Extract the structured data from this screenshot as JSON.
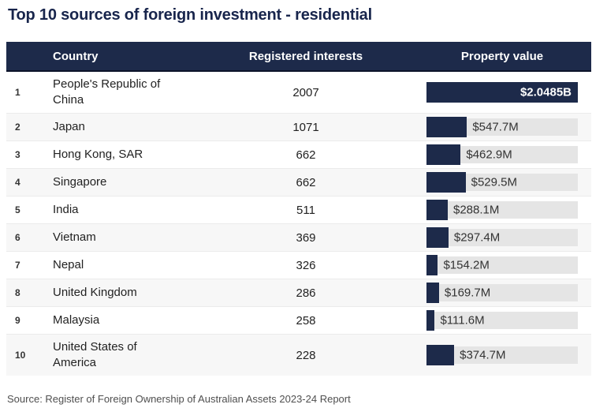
{
  "title": "Top 10 sources of foreign investment - residential",
  "source_note": "Source: Register of Foreign Ownership of Australian Assets 2023-24 Report",
  "colors": {
    "navy": "#1d2a4a",
    "title": "#18254c",
    "track": "#e5e5e5",
    "row_alt": "#f7f7f7",
    "header_text": "#ffffff"
  },
  "table": {
    "headers": {
      "country": "Country",
      "interests": "Registered interests",
      "value": "Property value"
    },
    "max_value_millions": 2048.5,
    "rows": [
      {
        "rank": "1",
        "country": "People's Republic of China",
        "interests": "2007",
        "value_label": "$2.0485B",
        "value_millions": 2048.5,
        "label_inside": true
      },
      {
        "rank": "2",
        "country": "Japan",
        "interests": "1071",
        "value_label": "$547.7M",
        "value_millions": 547.7,
        "label_inside": false
      },
      {
        "rank": "3",
        "country": "Hong Kong, SAR",
        "interests": "662",
        "value_label": "$462.9M",
        "value_millions": 462.9,
        "label_inside": false
      },
      {
        "rank": "4",
        "country": "Singapore",
        "interests": "662",
        "value_label": "$529.5M",
        "value_millions": 529.5,
        "label_inside": false
      },
      {
        "rank": "5",
        "country": "India",
        "interests": "511",
        "value_label": "$288.1M",
        "value_millions": 288.1,
        "label_inside": false
      },
      {
        "rank": "6",
        "country": "Vietnam",
        "interests": "369",
        "value_label": "$297.4M",
        "value_millions": 297.4,
        "label_inside": false
      },
      {
        "rank": "7",
        "country": "Nepal",
        "interests": "326",
        "value_label": "$154.2M",
        "value_millions": 154.2,
        "label_inside": false
      },
      {
        "rank": "8",
        "country": "United Kingdom",
        "interests": "286",
        "value_label": "$169.7M",
        "value_millions": 169.7,
        "label_inside": false
      },
      {
        "rank": "9",
        "country": "Malaysia",
        "interests": "258",
        "value_label": "$111.6M",
        "value_millions": 111.6,
        "label_inside": false
      },
      {
        "rank": "10",
        "country": "United States of America",
        "interests": "228",
        "value_label": "$374.7M",
        "value_millions": 374.7,
        "label_inside": false
      }
    ]
  },
  "chart_data": {
    "type": "bar",
    "orientation": "horizontal",
    "title": "Top 10 sources of foreign investment - residential",
    "categories": [
      "People's Republic of China",
      "Japan",
      "Hong Kong, SAR",
      "Singapore",
      "India",
      "Vietnam",
      "Nepal",
      "United Kingdom",
      "Malaysia",
      "United States of America"
    ],
    "series": [
      {
        "name": "Registered interests",
        "values": [
          2007,
          1071,
          662,
          662,
          511,
          369,
          326,
          286,
          258,
          228
        ]
      },
      {
        "name": "Property value ($M)",
        "values": [
          2048.5,
          547.7,
          462.9,
          529.5,
          288.1,
          297.4,
          154.2,
          169.7,
          111.6,
          374.7
        ]
      }
    ],
    "value_labels": [
      "$2.0485B",
      "$547.7M",
      "$462.9M",
      "$529.5M",
      "$288.1M",
      "$297.4M",
      "$154.2M",
      "$169.7M",
      "$111.6M",
      "$374.7M"
    ],
    "xlim_value_axis": [
      0,
      2048.5
    ],
    "grid": false,
    "legend": false
  }
}
